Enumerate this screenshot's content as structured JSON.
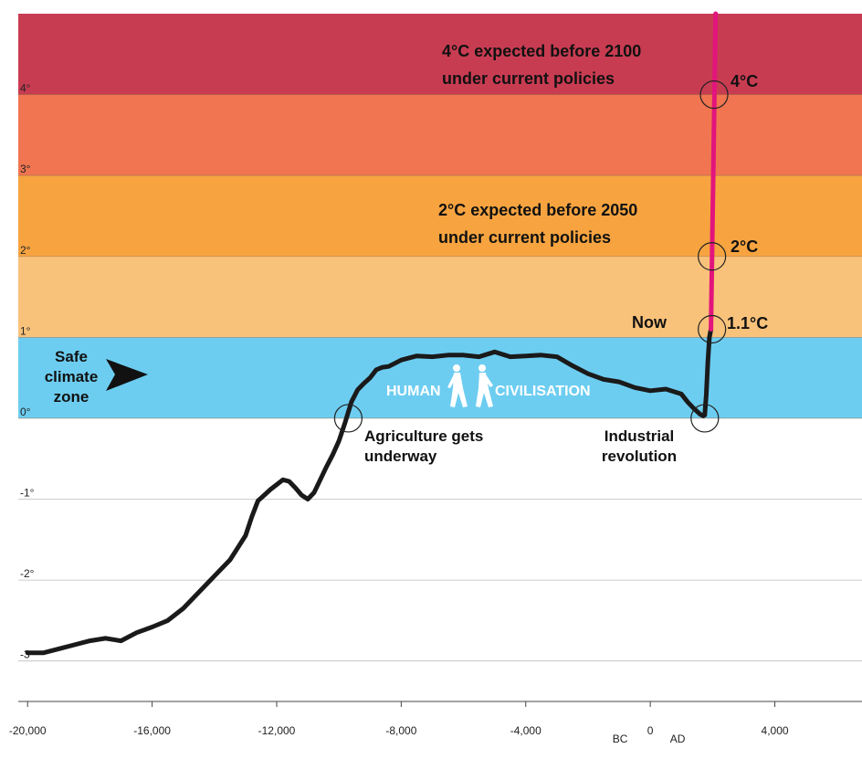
{
  "chart_data": {
    "type": "line",
    "x_ticks": [
      {
        "value": -20000,
        "label": "-20,000"
      },
      {
        "value": -16000,
        "label": "-16,000"
      },
      {
        "value": -12000,
        "label": "-12,000"
      },
      {
        "value": -8000,
        "label": "-8,000"
      },
      {
        "value": -4000,
        "label": "-4,000"
      },
      {
        "value": 0,
        "label": "0"
      },
      {
        "value": 4000,
        "label": "4,000"
      }
    ],
    "y_ticks": [
      {
        "value": 4,
        "label": "4°"
      },
      {
        "value": 3,
        "label": "3°"
      },
      {
        "value": 2,
        "label": "2°"
      },
      {
        "value": 1,
        "label": "1°"
      },
      {
        "value": 0,
        "label": "0°"
      },
      {
        "value": -1,
        "label": "-1°"
      },
      {
        "value": -2,
        "label": "-2°"
      },
      {
        "value": -3,
        "label": "-3°"
      }
    ],
    "era_labels": {
      "bc": "BC",
      "ad": "AD"
    },
    "xlim": [
      -20300,
      6800
    ],
    "ylim": [
      -3.5,
      5.0
    ],
    "bands": [
      {
        "from": 4,
        "to": 5.0,
        "color": "#c83c52"
      },
      {
        "from": 3,
        "to": 4,
        "color": "#f07550"
      },
      {
        "from": 2,
        "to": 3,
        "color": "#f7a440"
      },
      {
        "from": 1,
        "to": 2,
        "color": "#f9c27a"
      },
      {
        "from": 0,
        "to": 1,
        "color": "#6dcdf1"
      }
    ],
    "series": [
      {
        "color": "#1a1a1a",
        "x": [
          -20000,
          -19500,
          -19000,
          -18500,
          -18000,
          -17500,
          -17000,
          -16500,
          -16000,
          -15500,
          -15000,
          -14500,
          -14000,
          -13500,
          -13000,
          -12800,
          -12600,
          -12400,
          -12200,
          -12000,
          -11800,
          -11600,
          -11400,
          -11200,
          -11000,
          -10800,
          -10600,
          -10400,
          -10200,
          -10000,
          -9800,
          -9600,
          -9400,
          -9200,
          -9000,
          -8800,
          -8600,
          -8400,
          -8200,
          -8000,
          -7500,
          -7000,
          -6500,
          -6000,
          -5500,
          -5000,
          -4500,
          -4000,
          -3500,
          -3000,
          -2500,
          -2000,
          -1500,
          -1000,
          -500,
          0,
          500,
          1000,
          1200,
          1400,
          1600,
          1700,
          1750,
          1800,
          1850,
          1900,
          1950
        ],
        "y": [
          -2.9,
          -2.9,
          -2.85,
          -2.8,
          -2.75,
          -2.72,
          -2.75,
          -2.65,
          -2.58,
          -2.5,
          -2.35,
          -2.15,
          -1.95,
          -1.75,
          -1.45,
          -1.22,
          -1.02,
          -0.95,
          -0.88,
          -0.82,
          -0.76,
          -0.78,
          -0.86,
          -0.95,
          -1.0,
          -0.92,
          -0.76,
          -0.6,
          -0.45,
          -0.28,
          -0.05,
          0.2,
          0.35,
          0.43,
          0.5,
          0.6,
          0.63,
          0.64,
          0.68,
          0.72,
          0.77,
          0.76,
          0.78,
          0.78,
          0.76,
          0.82,
          0.76,
          0.77,
          0.78,
          0.76,
          0.65,
          0.55,
          0.48,
          0.45,
          0.38,
          0.34,
          0.36,
          0.3,
          0.2,
          0.12,
          0.05,
          0.03,
          0.04,
          0.3,
          0.7,
          1.0,
          1.1
        ]
      },
      {
        "color": "#e2157c",
        "x": [
          1950,
          2100
        ],
        "y": [
          1.1,
          5.0
        ]
      }
    ],
    "markers": [
      {
        "x": -9700,
        "y": 0,
        "label": "Agriculture gets\nunderway"
      },
      {
        "x": 1750,
        "y": 0,
        "label": "Industrial\nrevolution"
      },
      {
        "x": 1980,
        "y": 1.1,
        "label": "1.1°C"
      },
      {
        "x": 1980,
        "y": 2,
        "label": "2°C"
      },
      {
        "x": 2050,
        "y": 4,
        "label": "4°C"
      }
    ],
    "annotations": {
      "four_line1": "4°C expected before 2100",
      "four_line2": "under current policies",
      "two_line1": "2°C expected before 2050",
      "two_line2": "under current policies",
      "now": "Now",
      "safe1": "Safe",
      "safe2": "climate",
      "safe3": "zone",
      "human": "HUMAN",
      "civ": "CIVILISATION"
    }
  }
}
